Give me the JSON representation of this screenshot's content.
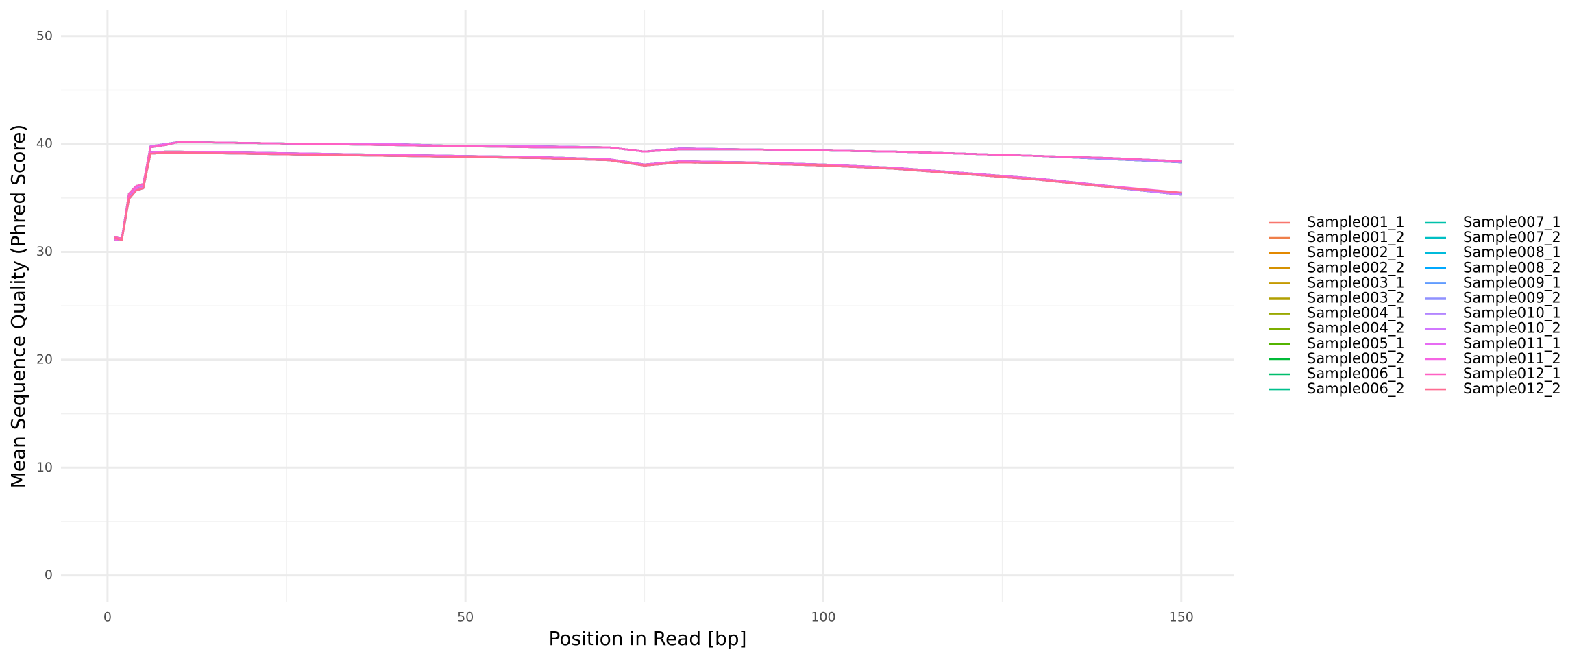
{
  "chart_data": {
    "type": "line",
    "y_label": "Mean Sequence Quality (Phred Score)",
    "x_label": "Position in Read [bp]",
    "x": [
      1,
      2,
      3,
      4,
      5,
      6,
      8,
      10,
      20,
      30,
      40,
      50,
      60,
      70,
      75,
      80,
      90,
      100,
      110,
      120,
      130,
      140,
      150
    ],
    "xlim": [
      -6.5,
      157.3
    ],
    "ylim": [
      -2.5,
      52.4
    ],
    "xticks": [
      0,
      50,
      100,
      150
    ],
    "yticks": [
      0,
      10,
      20,
      30,
      40,
      50
    ],
    "xminor": [
      25,
      75,
      125
    ],
    "yminor": [
      5,
      15,
      25,
      35,
      45
    ],
    "grid": true,
    "legend": "right",
    "series": [
      {
        "name": "Sample001_1",
        "color": "#F8766D",
        "values": [
          31.2,
          31.3,
          35.3,
          36.0,
          36.2,
          39.8,
          40.0,
          40.2,
          40.1,
          40.0,
          40.0,
          39.8,
          39.8,
          39.7,
          39.3,
          39.6,
          39.5,
          39.4,
          39.3,
          39.1,
          38.9,
          38.7,
          38.4
        ]
      },
      {
        "name": "Sample001_2",
        "color": "#EF7F49",
        "values": [
          31.1,
          31.2,
          35.0,
          35.8,
          36.0,
          39.2,
          39.3,
          39.3,
          39.2,
          39.1,
          39.0,
          38.9,
          38.8,
          38.6,
          38.1,
          38.4,
          38.3,
          38.1,
          37.8,
          37.3,
          36.8,
          36.1,
          35.4
        ]
      },
      {
        "name": "Sample002_1",
        "color": "#E38900",
        "values": [
          31.4,
          31.2,
          35.4,
          36.1,
          36.3,
          39.7,
          39.9,
          40.2,
          40.1,
          40.0,
          39.9,
          39.8,
          39.7,
          39.7,
          39.3,
          39.5,
          39.5,
          39.4,
          39.3,
          39.1,
          38.9,
          38.6,
          38.3
        ]
      },
      {
        "name": "Sample002_2",
        "color": "#D59100",
        "values": [
          31.3,
          31.1,
          34.9,
          35.7,
          35.9,
          39.1,
          39.2,
          39.2,
          39.1,
          39.0,
          38.9,
          38.8,
          38.7,
          38.5,
          38.0,
          38.3,
          38.2,
          38.0,
          37.7,
          37.2,
          36.7,
          36.0,
          35.3
        ]
      },
      {
        "name": "Sample003_1",
        "color": "#C49A00",
        "values": [
          31.2,
          31.3,
          35.3,
          36.0,
          36.2,
          39.8,
          40.0,
          40.2,
          40.1,
          40.0,
          40.0,
          39.8,
          39.8,
          39.7,
          39.3,
          39.6,
          39.5,
          39.4,
          39.3,
          39.1,
          38.9,
          38.7,
          38.4
        ]
      },
      {
        "name": "Sample003_2",
        "color": "#B09F00",
        "values": [
          31.1,
          31.2,
          35.0,
          35.8,
          36.0,
          39.2,
          39.3,
          39.3,
          39.2,
          39.1,
          39.0,
          38.9,
          38.8,
          38.6,
          38.1,
          38.4,
          38.3,
          38.1,
          37.8,
          37.3,
          36.8,
          36.1,
          35.4
        ]
      },
      {
        "name": "Sample004_1",
        "color": "#99A800",
        "values": [
          31.4,
          31.2,
          35.4,
          36.1,
          36.3,
          39.7,
          39.9,
          40.2,
          40.1,
          40.0,
          39.9,
          39.8,
          39.7,
          39.7,
          39.3,
          39.5,
          39.5,
          39.4,
          39.3,
          39.1,
          38.9,
          38.6,
          38.3
        ]
      },
      {
        "name": "Sample004_2",
        "color": "#7CAE00",
        "values": [
          31.3,
          31.1,
          34.9,
          35.7,
          35.9,
          39.1,
          39.2,
          39.2,
          39.1,
          39.0,
          38.9,
          38.8,
          38.7,
          38.5,
          38.0,
          38.3,
          38.2,
          38.0,
          37.7,
          37.2,
          36.7,
          36.0,
          35.3
        ]
      },
      {
        "name": "Sample005_1",
        "color": "#53B400",
        "values": [
          31.2,
          31.3,
          35.3,
          36.0,
          36.2,
          39.8,
          40.0,
          40.2,
          40.1,
          40.0,
          40.0,
          39.8,
          39.8,
          39.7,
          39.3,
          39.6,
          39.5,
          39.4,
          39.3,
          39.1,
          38.9,
          38.7,
          38.4
        ]
      },
      {
        "name": "Sample005_2",
        "color": "#00BA38",
        "values": [
          31.1,
          31.2,
          35.0,
          35.8,
          36.0,
          39.2,
          39.3,
          39.3,
          39.2,
          39.1,
          39.0,
          38.9,
          38.8,
          38.6,
          38.1,
          38.4,
          38.3,
          38.1,
          37.8,
          37.3,
          36.8,
          36.1,
          35.4
        ]
      },
      {
        "name": "Sample006_1",
        "color": "#00BE6C",
        "values": [
          31.4,
          31.2,
          35.4,
          36.1,
          36.3,
          39.7,
          39.9,
          40.2,
          40.1,
          40.0,
          39.9,
          39.8,
          39.7,
          39.7,
          39.3,
          39.5,
          39.5,
          39.4,
          39.3,
          39.1,
          38.9,
          38.6,
          38.3
        ]
      },
      {
        "name": "Sample006_2",
        "color": "#00C08D",
        "values": [
          31.3,
          31.1,
          34.9,
          35.7,
          35.9,
          39.1,
          39.2,
          39.2,
          39.1,
          39.0,
          38.9,
          38.8,
          38.7,
          38.5,
          38.0,
          38.3,
          38.2,
          38.0,
          37.7,
          37.2,
          36.7,
          36.0,
          35.3
        ]
      },
      {
        "name": "Sample007_1",
        "color": "#00C1AA",
        "values": [
          31.2,
          31.3,
          35.3,
          36.0,
          36.2,
          39.8,
          40.0,
          40.2,
          40.1,
          40.0,
          40.0,
          39.8,
          39.8,
          39.7,
          39.3,
          39.6,
          39.5,
          39.4,
          39.3,
          39.1,
          38.9,
          38.7,
          38.4
        ]
      },
      {
        "name": "Sample007_2",
        "color": "#00BFC4",
        "values": [
          31.1,
          31.2,
          35.0,
          35.8,
          36.0,
          39.2,
          39.3,
          39.3,
          39.2,
          39.1,
          39.0,
          38.9,
          38.8,
          38.6,
          38.1,
          38.4,
          38.3,
          38.1,
          37.8,
          37.3,
          36.8,
          36.1,
          35.4
        ]
      },
      {
        "name": "Sample008_1",
        "color": "#00BBDB",
        "values": [
          31.4,
          31.2,
          35.4,
          36.1,
          36.3,
          39.7,
          39.9,
          40.2,
          40.1,
          40.0,
          39.9,
          39.8,
          39.7,
          39.7,
          39.3,
          39.5,
          39.5,
          39.4,
          39.3,
          39.1,
          38.9,
          38.6,
          38.3
        ]
      },
      {
        "name": "Sample008_2",
        "color": "#00A9FF",
        "values": [
          31.3,
          31.1,
          34.9,
          35.7,
          35.9,
          39.1,
          39.2,
          39.2,
          39.1,
          39.0,
          38.9,
          38.8,
          38.7,
          38.5,
          38.0,
          38.3,
          38.2,
          38.0,
          37.7,
          37.2,
          36.7,
          36.0,
          35.3
        ]
      },
      {
        "name": "Sample009_1",
        "color": "#619CFF",
        "values": [
          31.2,
          31.3,
          35.3,
          36.0,
          36.2,
          39.8,
          40.0,
          40.2,
          40.1,
          40.0,
          40.0,
          39.8,
          39.8,
          39.7,
          39.3,
          39.6,
          39.5,
          39.4,
          39.3,
          39.1,
          38.9,
          38.7,
          38.4
        ]
      },
      {
        "name": "Sample009_2",
        "color": "#8F91FF",
        "values": [
          31.1,
          31.2,
          35.0,
          35.8,
          36.0,
          39.2,
          39.3,
          39.3,
          39.2,
          39.1,
          39.0,
          38.9,
          38.8,
          38.6,
          38.1,
          38.4,
          38.3,
          38.1,
          37.8,
          37.3,
          36.8,
          36.1,
          35.4
        ]
      },
      {
        "name": "Sample010_1",
        "color": "#B385FF",
        "values": [
          31.4,
          31.2,
          35.4,
          36.1,
          36.3,
          39.7,
          39.9,
          40.2,
          40.1,
          40.0,
          39.9,
          39.8,
          39.7,
          39.7,
          39.3,
          39.5,
          39.5,
          39.4,
          39.3,
          39.1,
          38.9,
          38.6,
          38.3
        ]
      },
      {
        "name": "Sample010_2",
        "color": "#D177FF",
        "values": [
          31.3,
          31.1,
          34.9,
          35.7,
          35.9,
          39.1,
          39.2,
          39.2,
          39.1,
          39.0,
          38.9,
          38.8,
          38.7,
          38.5,
          38.0,
          38.3,
          38.2,
          38.0,
          37.7,
          37.2,
          36.7,
          36.0,
          35.3
        ]
      },
      {
        "name": "Sample011_1",
        "color": "#E76BF3",
        "values": [
          31.2,
          31.3,
          35.3,
          36.0,
          36.2,
          39.8,
          40.0,
          40.2,
          40.1,
          40.0,
          40.0,
          39.8,
          39.8,
          39.7,
          39.3,
          39.6,
          39.5,
          39.4,
          39.3,
          39.1,
          38.9,
          38.7,
          38.4
        ]
      },
      {
        "name": "Sample011_2",
        "color": "#F564E3",
        "values": [
          31.1,
          31.2,
          35.0,
          35.8,
          36.0,
          39.2,
          39.3,
          39.3,
          39.2,
          39.1,
          39.0,
          38.9,
          38.8,
          38.6,
          38.1,
          38.4,
          38.3,
          38.1,
          37.8,
          37.3,
          36.8,
          36.1,
          35.5
        ]
      },
      {
        "name": "Sample012_1",
        "color": "#FF61C3",
        "values": [
          31.4,
          31.2,
          35.4,
          36.1,
          36.3,
          39.7,
          39.9,
          40.2,
          40.1,
          40.0,
          39.9,
          39.8,
          39.7,
          39.7,
          39.3,
          39.5,
          39.5,
          39.4,
          39.3,
          39.1,
          38.9,
          38.7,
          38.4
        ]
      },
      {
        "name": "Sample012_2",
        "color": "#FF6C91",
        "values": [
          31.3,
          31.1,
          34.9,
          35.7,
          35.9,
          39.1,
          39.2,
          39.2,
          39.1,
          39.0,
          38.9,
          38.8,
          38.7,
          38.5,
          38.0,
          38.3,
          38.2,
          38.0,
          37.7,
          37.2,
          36.7,
          36.0,
          35.5
        ]
      }
    ]
  }
}
